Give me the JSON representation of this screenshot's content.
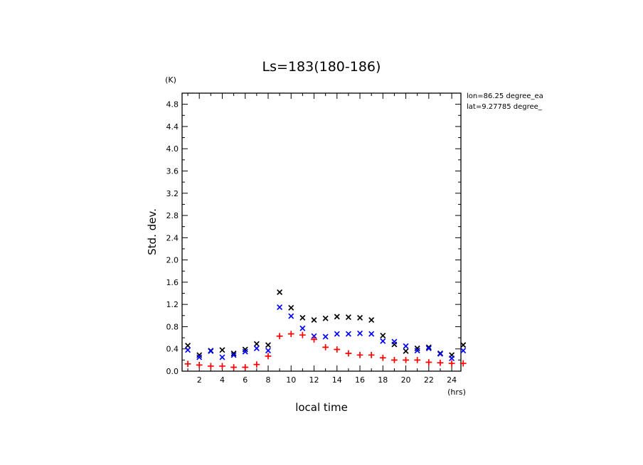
{
  "chart_data": {
    "type": "scatter",
    "title": "Ls=183(180-186)",
    "xlabel": "local time",
    "ylabel": "Std. dev.",
    "x_unit": "(hrs)",
    "y_unit": "(K)",
    "xlim": [
      0.5,
      24.8
    ],
    "ylim": [
      0,
      5.0
    ],
    "x_ticks": [
      2,
      4,
      6,
      8,
      10,
      12,
      14,
      16,
      18,
      20,
      22,
      24
    ],
    "y_ticks": [
      0.0,
      0.4,
      0.8,
      1.2,
      1.6,
      2.0,
      2.4,
      2.8,
      3.2,
      3.6,
      4.0,
      4.4,
      4.8
    ],
    "y_tick_labels": [
      "0.0",
      "0.4",
      "0.8",
      "1.2",
      "1.6",
      "2.0",
      "2.4",
      "2.8",
      "3.2",
      "3.6",
      "4.0",
      "4.4",
      "4.8"
    ],
    "annotations": [
      "lon=86.25 degree_ea",
      "lat=9.27785 degree_"
    ],
    "grid": false,
    "x": [
      1,
      2,
      3,
      4,
      5,
      6,
      7,
      8,
      9,
      10,
      11,
      12,
      13,
      14,
      15,
      16,
      17,
      18,
      19,
      20,
      21,
      22,
      23,
      24,
      25
    ],
    "series": [
      {
        "marker": "x",
        "color": "#000000",
        "values": [
          0.46,
          0.29,
          0.37,
          0.38,
          0.32,
          0.39,
          0.49,
          0.47,
          1.42,
          1.14,
          0.96,
          0.92,
          0.95,
          0.98,
          0.97,
          0.96,
          0.92,
          0.64,
          0.48,
          0.36,
          0.41,
          0.43,
          0.32,
          0.29,
          0.47
        ]
      },
      {
        "marker": "x",
        "color": "#0000ff",
        "values": [
          0.38,
          0.25,
          0.36,
          0.25,
          0.29,
          0.35,
          0.41,
          0.37,
          1.15,
          0.99,
          0.77,
          0.63,
          0.62,
          0.67,
          0.67,
          0.68,
          0.67,
          0.54,
          0.53,
          0.45,
          0.37,
          0.41,
          0.31,
          0.23,
          0.37
        ]
      },
      {
        "marker": "+",
        "color": "#ff0000",
        "values": [
          0.13,
          0.11,
          0.09,
          0.09,
          0.07,
          0.07,
          0.12,
          0.27,
          0.63,
          0.67,
          0.65,
          0.57,
          0.43,
          0.39,
          0.32,
          0.29,
          0.29,
          0.24,
          0.2,
          0.2,
          0.2,
          0.16,
          0.15,
          0.14,
          0.14
        ]
      }
    ]
  }
}
